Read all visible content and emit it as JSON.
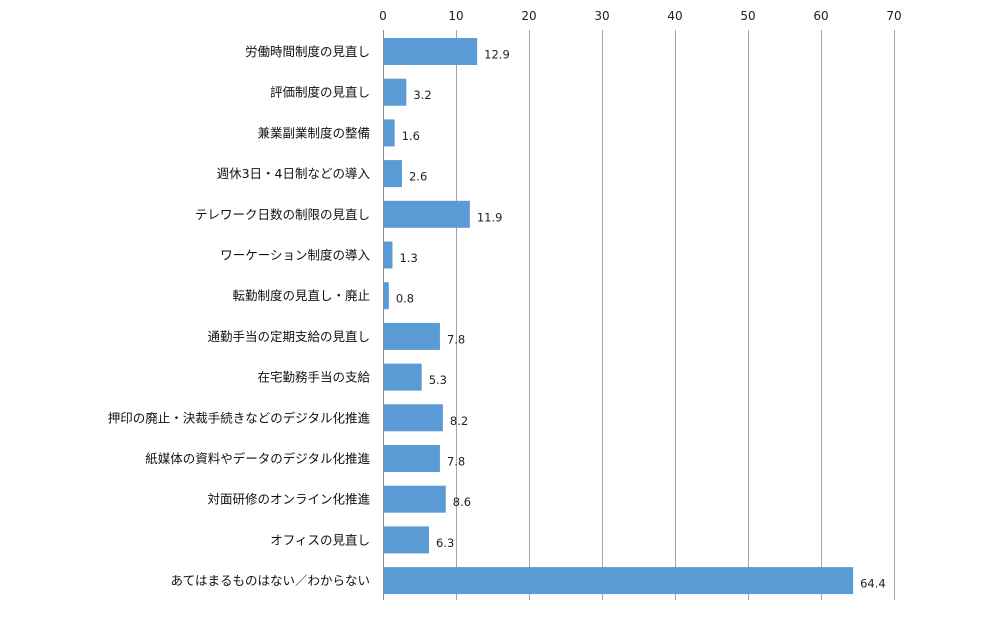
{
  "chart_data": {
    "type": "bar",
    "orientation": "horizontal",
    "categories": [
      "労働時間制度の見直し",
      "評価制度の見直し",
      "兼業副業制度の整備",
      "週休3日・4日制などの導入",
      "テレワーク日数の制限の見直し",
      "ワーケーション制度の導入",
      "転勤制度の見直し・廃止",
      "通勤手当の定期支給の見直し",
      "在宅勤務手当の支給",
      "押印の廃止・決裁手続きなどのデジタル化推進",
      "紙媒体の資料やデータのデジタル化推進",
      "対面研修のオンライン化推進",
      "オフィスの見直し",
      "あてはまるものはない／わからない"
    ],
    "values": [
      12.9,
      3.2,
      1.6,
      2.6,
      11.9,
      1.3,
      0.8,
      7.8,
      5.3,
      8.2,
      7.8,
      8.6,
      6.3,
      64.4
    ],
    "value_labels": [
      "12.9",
      "3.2",
      "1.6",
      "2.6",
      "11.9",
      "1.3",
      "0.8",
      "7.8",
      "5.3",
      "8.2",
      "7.8",
      "8.6",
      "6.3",
      "64.4"
    ],
    "xlim": [
      0,
      70
    ],
    "xticks": [
      0,
      10,
      20,
      30,
      40,
      50,
      60,
      70
    ],
    "x_axis_position": "top",
    "grid": true,
    "legend": "none",
    "bar_color": "#5b9bd5"
  }
}
